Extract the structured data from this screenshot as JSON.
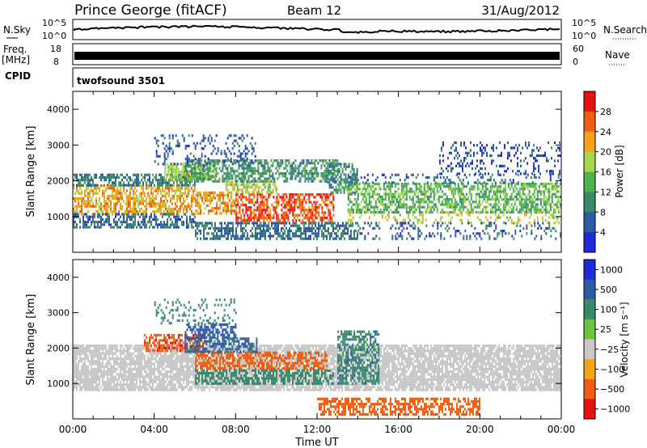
{
  "header": {
    "station": "Prince George (fitACF)",
    "beam": "Beam 12",
    "date": "31/Aug/2012"
  },
  "panels": {
    "noise": {
      "left_label": "N.Sky",
      "right_label": "N.Search",
      "ticks": [
        "10^5",
        "10^0"
      ]
    },
    "freq": {
      "left_label_1": "Freq.",
      "left_label_2": "[MHz]",
      "left_ticks": [
        "18",
        "8"
      ],
      "right_label": "Nave",
      "right_ticks": [
        "60",
        "0"
      ]
    },
    "cpid": {
      "label": "CPID",
      "mode": "twofsound 3501"
    }
  },
  "chart_data": [
    {
      "type": "heatmap",
      "quantity": "Power",
      "xlabel": "Time UT",
      "ylabel": "Slant Range [km]",
      "xlim": [
        0,
        24
      ],
      "ylim": [
        0,
        4500
      ],
      "x_ticks": [
        0,
        4,
        8,
        12,
        16,
        20,
        24
      ],
      "x_tick_labels": [
        "00:00",
        "04:00",
        "08:00",
        "12:00",
        "16:00",
        "20:00",
        "00:00"
      ],
      "y_ticks": [
        1000,
        2000,
        3000,
        4000
      ],
      "y_tick_labels": [
        "1000",
        "2000",
        "3000",
        "4000"
      ],
      "colorbar": {
        "label": "Power [dB]",
        "range": [
          0,
          32
        ],
        "ticks": [
          4,
          8,
          12,
          16,
          20,
          24,
          28
        ],
        "tick_labels": [
          "4",
          "8",
          "12",
          "16",
          "20",
          "24",
          "28"
        ],
        "colors": [
          "#1f2ad8",
          "#2f5aa8",
          "#3b8a6a",
          "#4fb24f",
          "#a8d64a",
          "#f2a418",
          "#f25e10",
          "#e81010"
        ]
      },
      "regions": [
        {
          "t0": 0.0,
          "t1": 6.0,
          "r0": 1100,
          "r1": 1900,
          "value": 22
        },
        {
          "t0": 0.0,
          "t1": 6.0,
          "r0": 1900,
          "r1": 2200,
          "value": 9
        },
        {
          "t0": 0.0,
          "t1": 6.0,
          "r0": 700,
          "r1": 1100,
          "value": 7
        },
        {
          "t0": 4.5,
          "t1": 7.0,
          "r0": 2000,
          "r1": 2500,
          "value": 17
        },
        {
          "t0": 6.0,
          "t1": 8.0,
          "r0": 1050,
          "r1": 1700,
          "value": 23
        },
        {
          "t0": 8.0,
          "t1": 12.8,
          "r0": 850,
          "r1": 1650,
          "value": 27
        },
        {
          "t0": 7.5,
          "t1": 10.0,
          "r0": 1700,
          "r1": 2000,
          "value": 18
        },
        {
          "t0": 5.5,
          "t1": 13.0,
          "r0": 2000,
          "r1": 2600,
          "value": 11
        },
        {
          "t0": 6.0,
          "t1": 14.0,
          "r0": 400,
          "r1": 850,
          "value": 8
        },
        {
          "t0": 12.5,
          "t1": 14.0,
          "r0": 1700,
          "r1": 2500,
          "value": 10
        },
        {
          "t0": 13.5,
          "t1": 24.0,
          "r0": 1150,
          "r1": 1950,
          "value": 14
        },
        {
          "t0": 13.5,
          "t1": 24.0,
          "r0": 850,
          "r1": 1150,
          "value": 19
        },
        {
          "t0": 13.5,
          "t1": 24.0,
          "r0": 1950,
          "r1": 2200,
          "value": 7
        },
        {
          "t0": 14.0,
          "t1": 24.0,
          "r0": 350,
          "r1": 850,
          "value": 6
        },
        {
          "t0": 4.0,
          "t1": 9.0,
          "r0": 2500,
          "r1": 3300,
          "value": 6
        },
        {
          "t0": 18.0,
          "t1": 24.0,
          "r0": 2200,
          "r1": 3100,
          "value": 5
        }
      ]
    },
    {
      "type": "heatmap",
      "quantity": "Velocity",
      "xlabel": "Time UT",
      "ylabel": "Slant Range [km]",
      "xlim": [
        0,
        24
      ],
      "ylim": [
        0,
        4500
      ],
      "x_ticks": [
        0,
        4,
        8,
        12,
        16,
        20,
        24
      ],
      "x_tick_labels": [
        "00:00",
        "04:00",
        "08:00",
        "12:00",
        "16:00",
        "20:00",
        "00:00"
      ],
      "y_ticks": [
        1000,
        2000,
        3000,
        4000
      ],
      "y_tick_labels": [
        "1000",
        "2000",
        "3000",
        "4000"
      ],
      "colorbar": {
        "label": "Velocity [m s⁻¹]",
        "ticks": [
          1000,
          500,
          100,
          25,
          -25,
          -100,
          -500,
          -1000
        ],
        "tick_labels": [
          "1000",
          "500",
          "100",
          "25",
          "−25",
          "−100",
          "−500",
          "−1000"
        ],
        "colors": [
          "#1f2ad8",
          "#2f5aa8",
          "#3b8a6a",
          "#6fc23f",
          "#c8c8c8",
          "#f2a418",
          "#f25e10",
          "#e81010"
        ]
      },
      "regions": [
        {
          "t0": 0.0,
          "t1": 24.0,
          "r0": 800,
          "r1": 2100,
          "value": 0
        },
        {
          "t0": 3.5,
          "t1": 6.5,
          "r0": 1950,
          "r1": 2400,
          "value": -400
        },
        {
          "t0": 5.5,
          "t1": 8.0,
          "r0": 2300,
          "r1": 2700,
          "value": 250
        },
        {
          "t0": 6.0,
          "t1": 12.5,
          "r0": 1400,
          "r1": 1900,
          "value": -300
        },
        {
          "t0": 6.0,
          "t1": 12.8,
          "r0": 1000,
          "r1": 1400,
          "value": 60
        },
        {
          "t0": 5.5,
          "t1": 9.0,
          "r0": 1900,
          "r1": 2300,
          "value": 120
        },
        {
          "t0": 12.0,
          "t1": 20.0,
          "r0": 100,
          "r1": 600,
          "value": -300
        },
        {
          "t0": 13.0,
          "t1": 15.0,
          "r0": 1000,
          "r1": 2500,
          "value": 80
        },
        {
          "t0": 4.0,
          "t1": 8.0,
          "r0": 2700,
          "r1": 3400,
          "value": 50
        }
      ]
    }
  ]
}
